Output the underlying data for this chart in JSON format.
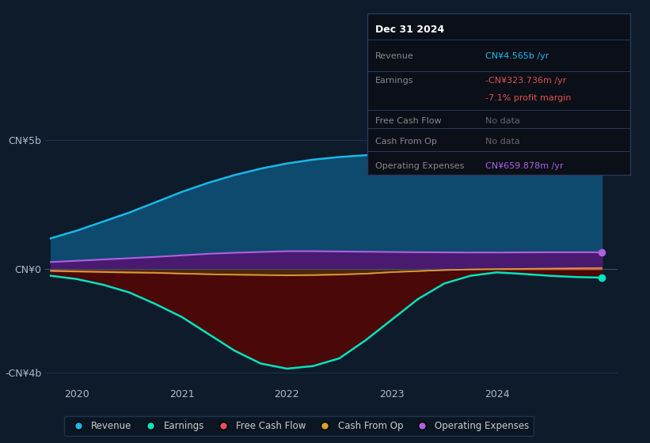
{
  "bg_color": "#0d1b2a",
  "revenue_color": "#1ab8e8",
  "revenue_fill": "#0e4a6e",
  "earnings_color": "#00e5c0",
  "earnings_fill_neg": "#4a0808",
  "opex_color": "#b060e0",
  "opex_fill": "#4a1a70",
  "fcf_color": "#e05060",
  "fcf_fill": "#6a1020",
  "cashop_color": "#d4a030",
  "cashop_fill": "#4a3000",
  "grid_color": "#1e3050",
  "zero_line_color": "#3a5070",
  "ylim": [
    -4500000000.0,
    5800000000.0
  ],
  "xlim": [
    2019.7,
    2025.15
  ],
  "xticks": [
    2020,
    2021,
    2022,
    2023,
    2024
  ],
  "yticks_vals": [
    5000000000.0,
    0,
    -4000000000.0
  ],
  "yticks_labels": [
    "CN¥5b",
    "CN¥0",
    "-CN¥4b"
  ],
  "x": [
    2019.75,
    2020.0,
    2020.25,
    2020.5,
    2020.75,
    2021.0,
    2021.25,
    2021.5,
    2021.75,
    2022.0,
    2022.25,
    2022.5,
    2022.75,
    2023.0,
    2023.25,
    2023.5,
    2023.75,
    2024.0,
    2024.25,
    2024.5,
    2024.75,
    2025.0
  ],
  "revenue": [
    1200000000.0,
    1500000000.0,
    1850000000.0,
    2200000000.0,
    2600000000.0,
    3000000000.0,
    3350000000.0,
    3650000000.0,
    3900000000.0,
    4100000000.0,
    4250000000.0,
    4350000000.0,
    4420000000.0,
    4500000000.0,
    4750000000.0,
    4850000000.0,
    4880000000.0,
    4900000000.0,
    4850000000.0,
    4750000000.0,
    4600000000.0,
    4565000000.0
  ],
  "earnings": [
    -250000000.0,
    -380000000.0,
    -600000000.0,
    -900000000.0,
    -1350000000.0,
    -1850000000.0,
    -2500000000.0,
    -3150000000.0,
    -3650000000.0,
    -3850000000.0,
    -3750000000.0,
    -3450000000.0,
    -2750000000.0,
    -1950000000.0,
    -1150000000.0,
    -550000000.0,
    -250000000.0,
    -120000000.0,
    -180000000.0,
    -250000000.0,
    -300000000.0,
    -323700000.0
  ],
  "opex": [
    280000000.0,
    330000000.0,
    380000000.0,
    430000000.0,
    480000000.0,
    540000000.0,
    600000000.0,
    640000000.0,
    670000000.0,
    700000000.0,
    700000000.0,
    690000000.0,
    680000000.0,
    670000000.0,
    660000000.0,
    655000000.0,
    650000000.0,
    650000000.0,
    655000000.0,
    658000000.0,
    659000000.0,
    659900000.0
  ],
  "fcf": [
    -40000000.0,
    -70000000.0,
    -90000000.0,
    -110000000.0,
    -130000000.0,
    -160000000.0,
    -190000000.0,
    -210000000.0,
    -220000000.0,
    -240000000.0,
    -230000000.0,
    -210000000.0,
    -170000000.0,
    -110000000.0,
    -70000000.0,
    -30000000.0,
    -5000000.0,
    0.0,
    0.0,
    0.0,
    0.0,
    0.0
  ],
  "cashop": [
    -70000000.0,
    -90000000.0,
    -110000000.0,
    -130000000.0,
    -140000000.0,
    -170000000.0,
    -190000000.0,
    -210000000.0,
    -220000000.0,
    -230000000.0,
    -220000000.0,
    -200000000.0,
    -170000000.0,
    -110000000.0,
    -70000000.0,
    -30000000.0,
    -5000000.0,
    10000000.0,
    20000000.0,
    30000000.0,
    40000000.0,
    50000000.0
  ],
  "tooltip_title": "Dec 31 2024",
  "tooltip_bg": "#0a0f18",
  "tooltip_border": "#2a3a5a",
  "tooltip_label_color": "#888888",
  "tooltip_rows": [
    {
      "label": "Revenue",
      "value": "CN¥4.565b /yr",
      "value_color": "#1ab8e8"
    },
    {
      "label": "Earnings",
      "value": "-CN¥323.736m /yr",
      "value_color": "#e05050"
    },
    {
      "label": "",
      "value": "-7.1% profit margin",
      "value_color": "#e05050"
    },
    {
      "label": "Free Cash Flow",
      "value": "No data",
      "value_color": "#666666"
    },
    {
      "label": "Cash From Op",
      "value": "No data",
      "value_color": "#666666"
    },
    {
      "label": "Operating Expenses",
      "value": "CN¥659.878m /yr",
      "value_color": "#b060e0"
    }
  ],
  "legend_items": [
    {
      "label": "Revenue",
      "color": "#1ab8e8"
    },
    {
      "label": "Earnings",
      "color": "#00e5c0"
    },
    {
      "label": "Free Cash Flow",
      "color": "#e05060"
    },
    {
      "label": "Cash From Op",
      "color": "#d4a030"
    },
    {
      "label": "Operating Expenses",
      "color": "#b060e0"
    }
  ]
}
